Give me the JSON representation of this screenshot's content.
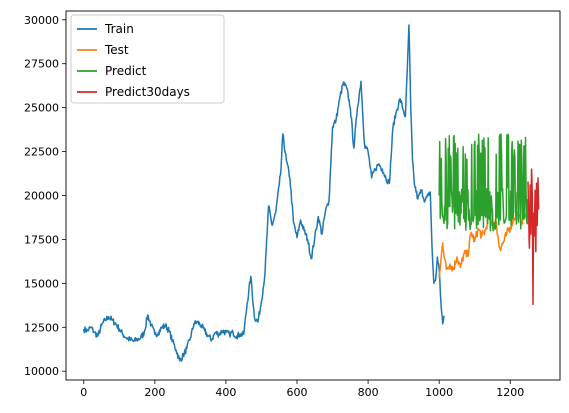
{
  "chart_data": {
    "type": "line",
    "title": "",
    "xlabel": "",
    "ylabel": "",
    "xlim": [
      -50,
      1340
    ],
    "ylim": [
      9500,
      30500
    ],
    "x_ticks": [
      0,
      200,
      400,
      600,
      800,
      1000,
      1200
    ],
    "y_ticks": [
      10000,
      12500,
      15000,
      17500,
      20000,
      22500,
      25000,
      27500,
      30000
    ],
    "grid": false,
    "legend_position": "top-left",
    "series": [
      {
        "name": "Train",
        "color": "#1f77b4",
        "anchors": [
          [
            0,
            12400
          ],
          [
            10,
            12300
          ],
          [
            20,
            12500
          ],
          [
            30,
            12200
          ],
          [
            40,
            12000
          ],
          [
            50,
            12600
          ],
          [
            60,
            12900
          ],
          [
            70,
            13100
          ],
          [
            80,
            12900
          ],
          [
            90,
            12700
          ],
          [
            100,
            12400
          ],
          [
            110,
            12100
          ],
          [
            120,
            11900
          ],
          [
            130,
            11800
          ],
          [
            140,
            11700
          ],
          [
            150,
            11800
          ],
          [
            160,
            11900
          ],
          [
            170,
            12200
          ],
          [
            180,
            13200
          ],
          [
            190,
            12600
          ],
          [
            200,
            12100
          ],
          [
            210,
            12200
          ],
          [
            220,
            12500
          ],
          [
            230,
            12600
          ],
          [
            240,
            12300
          ],
          [
            250,
            11700
          ],
          [
            260,
            11200
          ],
          [
            270,
            10600
          ],
          [
            280,
            10900
          ],
          [
            290,
            11300
          ],
          [
            300,
            11900
          ],
          [
            310,
            12700
          ],
          [
            320,
            12800
          ],
          [
            330,
            12600
          ],
          [
            340,
            12300
          ],
          [
            350,
            12000
          ],
          [
            360,
            11800
          ],
          [
            370,
            12200
          ],
          [
            380,
            12100
          ],
          [
            390,
            12300
          ],
          [
            400,
            12200
          ],
          [
            410,
            12100
          ],
          [
            420,
            12200
          ],
          [
            430,
            12000
          ],
          [
            440,
            12100
          ],
          [
            450,
            12100
          ],
          [
            460,
            13900
          ],
          [
            470,
            15400
          ],
          [
            480,
            13100
          ],
          [
            490,
            12800
          ],
          [
            500,
            14000
          ],
          [
            510,
            15600
          ],
          [
            520,
            19400
          ],
          [
            530,
            18300
          ],
          [
            540,
            19000
          ],
          [
            550,
            20600
          ],
          [
            555,
            21500
          ],
          [
            560,
            23500
          ],
          [
            570,
            22000
          ],
          [
            580,
            21000
          ],
          [
            590,
            18500
          ],
          [
            600,
            17600
          ],
          [
            610,
            18600
          ],
          [
            620,
            18000
          ],
          [
            630,
            17500
          ],
          [
            640,
            16400
          ],
          [
            650,
            17600
          ],
          [
            660,
            18800
          ],
          [
            670,
            17800
          ],
          [
            680,
            19100
          ],
          [
            690,
            19700
          ],
          [
            700,
            23900
          ],
          [
            710,
            24300
          ],
          [
            720,
            25500
          ],
          [
            730,
            26400
          ],
          [
            740,
            26100
          ],
          [
            750,
            25000
          ],
          [
            760,
            22700
          ],
          [
            770,
            25000
          ],
          [
            780,
            26500
          ],
          [
            790,
            22900
          ],
          [
            800,
            22500
          ],
          [
            810,
            21000
          ],
          [
            820,
            21500
          ],
          [
            830,
            21800
          ],
          [
            840,
            21500
          ],
          [
            850,
            21000
          ],
          [
            860,
            20700
          ],
          [
            870,
            23900
          ],
          [
            880,
            24800
          ],
          [
            890,
            25500
          ],
          [
            900,
            24800
          ],
          [
            905,
            24500
          ],
          [
            910,
            27000
          ],
          [
            915,
            29700
          ],
          [
            920,
            25000
          ],
          [
            925,
            22000
          ],
          [
            930,
            20700
          ],
          [
            940,
            19800
          ],
          [
            950,
            20300
          ],
          [
            960,
            19700
          ],
          [
            970,
            20000
          ],
          [
            975,
            20200
          ],
          [
            980,
            17000
          ],
          [
            985,
            15000
          ],
          [
            990,
            15200
          ],
          [
            995,
            16500
          ],
          [
            1000,
            15800
          ],
          [
            1005,
            13900
          ],
          [
            1010,
            12700
          ],
          [
            1015,
            13100
          ]
        ]
      },
      {
        "name": "Test",
        "color": "#ff7f0e",
        "anchors": [
          [
            1000,
            15300
          ],
          [
            1010,
            17300
          ],
          [
            1020,
            15800
          ],
          [
            1030,
            16100
          ],
          [
            1040,
            15800
          ],
          [
            1050,
            16500
          ],
          [
            1060,
            15900
          ],
          [
            1070,
            16700
          ],
          [
            1080,
            16600
          ],
          [
            1090,
            17900
          ],
          [
            1100,
            17400
          ],
          [
            1110,
            18100
          ],
          [
            1120,
            17700
          ],
          [
            1130,
            18000
          ],
          [
            1140,
            18800
          ],
          [
            1150,
            18400
          ],
          [
            1160,
            18500
          ],
          [
            1170,
            17000
          ],
          [
            1180,
            17300
          ],
          [
            1190,
            17800
          ],
          [
            1200,
            18200
          ],
          [
            1210,
            18700
          ],
          [
            1220,
            19000
          ],
          [
            1230,
            18500
          ],
          [
            1240,
            18800
          ],
          [
            1250,
            18600
          ]
        ]
      },
      {
        "name": "Predict",
        "color": "#2ca02c",
        "x_start": 1000,
        "x_end": 1250,
        "low": 18000,
        "high": 23500,
        "center": 19500
      },
      {
        "name": "Predict30days",
        "color": "#d62728",
        "anchors": [
          [
            1250,
            20800
          ],
          [
            1252,
            18900
          ],
          [
            1254,
            17000
          ],
          [
            1256,
            20600
          ],
          [
            1258,
            17800
          ],
          [
            1260,
            21500
          ],
          [
            1262,
            20000
          ],
          [
            1264,
            13800
          ],
          [
            1266,
            19000
          ],
          [
            1268,
            17700
          ],
          [
            1270,
            20300
          ],
          [
            1272,
            16800
          ],
          [
            1274,
            20700
          ],
          [
            1276,
            18300
          ],
          [
            1278,
            21000
          ],
          [
            1280,
            19200
          ]
        ]
      }
    ]
  }
}
